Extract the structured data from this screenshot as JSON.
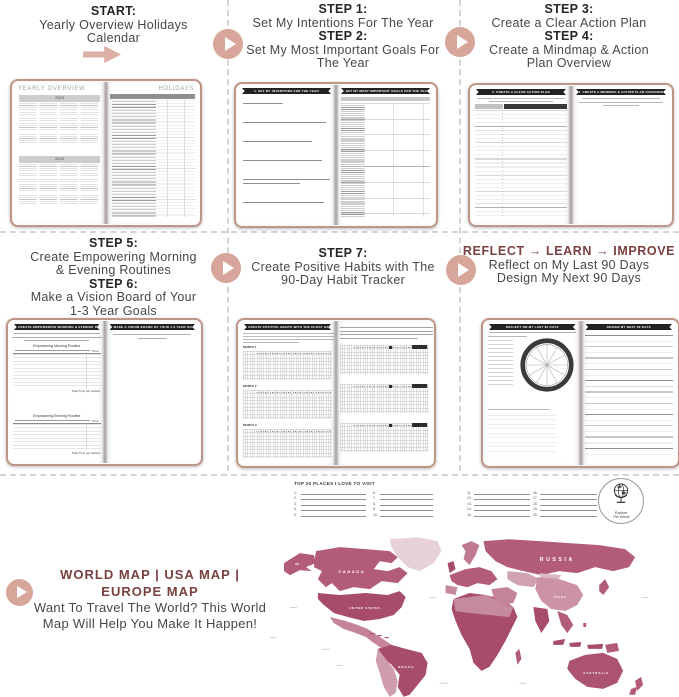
{
  "palette": {
    "rose_icon": "#d7a59a",
    "maroon": "#7b4040",
    "caption_ink": "#474747",
    "map_dark": "#a84d69"
  },
  "cards": [
    {
      "lines": [
        "START:",
        "Yearly Overview Holidays",
        "Calendar"
      ]
    },
    {
      "lines": [
        "STEP 1:",
        "Set My Intentions For The Year",
        "STEP 2:",
        "Set My Most Important Goals For",
        "The Year"
      ]
    },
    {
      "lines": [
        "STEP 3:",
        "Create a Clear Action Plan",
        "STEP 4:",
        "Create a Mindmap & Action",
        "Plan Overview"
      ]
    },
    {
      "lines": [
        "STEP 5:",
        "Create Empowering Morning",
        "& Evening Routines",
        "STEP 6:",
        "Make a Vision Board of Your",
        "1-3 Year Goals"
      ]
    },
    {
      "lines": [
        "STEP 7:",
        "Create Positive Habits with The",
        "90-Day Habit Tracker"
      ]
    },
    {
      "lines": [
        "REFLECT → LEARN → IMPROVE",
        "Reflect on My Last 90 Days",
        "Design My Next 90 Days"
      ]
    }
  ],
  "spreads": {
    "s1": {
      "left_title": "YEARLY OVERVIEW",
      "right_title": "HOLIDAYS",
      "year_top": "2023",
      "year_bottom": "2024"
    },
    "s2": {
      "left_banner": "1. SET MY INTENTIONS FOR THE YEAR",
      "right_banner": "2. SET MY MOST IMPORTANT GOALS FOR THE YEAR"
    },
    "s3": {
      "left_banner": "3. CREATE A CLEAR ACTION PLAN",
      "right_banner": "4. CREATE A MINDMAP & ACTION PLAN OVERVIEW"
    },
    "s4": {
      "left_banner": "5. CREATE EMPOWERING MORNING & EVENING ROUTINES",
      "right_banner": "6. MAKE A VISION BOARD OF YOUR 1-3 YEAR GOALS",
      "morning_header": "Empowering Morning Routine",
      "evening_header": "Empowering Evening Routine",
      "time_label": "Time",
      "total_label": "Total Time per Activity"
    },
    "s5": {
      "left_banner": "7. CREATE POSITIVE HABITS WITH THE 90-DAY HABIT TRACKER",
      "months": [
        "MONTH 1",
        "MONTH 2",
        "MONTH 3"
      ]
    },
    "s6": {
      "left_banner": "REFLECT ON MY LAST 90 DAYS",
      "right_banner": "DESIGN MY NEXT 90 DAYS"
    }
  },
  "bottom": {
    "heading": "WORLD MAP | USA MAP | EUROPE MAP",
    "sub_lines": [
      "Want To Travel The World? This World",
      "Map Will Help You Make It Happen!"
    ]
  },
  "map": {
    "list_title": "TOP 20 PLACES I LOVE TO VISIT",
    "numbers": [
      "1.",
      "2.",
      "3.",
      "4.",
      "5.",
      "6.",
      "7.",
      "8.",
      "9.",
      "10.",
      "11.",
      "12.",
      "13.",
      "14.",
      "15.",
      "16.",
      "17.",
      "18.",
      "19.",
      "20."
    ],
    "emblem_lines": [
      "Explore",
      "The World"
    ],
    "labels": {
      "alaska": "US",
      "canada": "CANADA",
      "united_states": "UNITED STATES",
      "brazil": "BRAZIL",
      "russia": "RUSSIA",
      "china": "CHINA",
      "australia": "AUSTRALIA"
    }
  }
}
